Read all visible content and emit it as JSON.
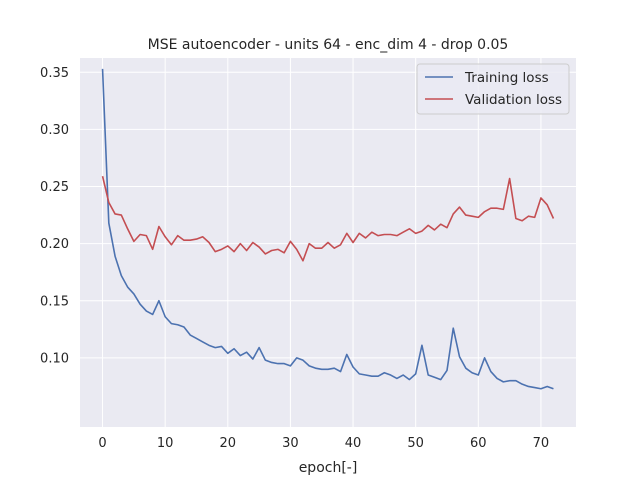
{
  "chart_data": {
    "type": "line",
    "title": "MSE autoencoder - units 64 - enc_dim 4 - drop 0.05",
    "xlabel": "epoch[-]",
    "ylabel": "",
    "xlim": [
      -3.6,
      75.6
    ],
    "ylim": [
      0.0395,
      0.3625
    ],
    "xticks": [
      0,
      10,
      20,
      30,
      40,
      50,
      60,
      70
    ],
    "xtick_labels": [
      "0",
      "10",
      "20",
      "30",
      "40",
      "50",
      "60",
      "70"
    ],
    "yticks": [
      0.1,
      0.15,
      0.2,
      0.25,
      0.3,
      0.35
    ],
    "ytick_labels": [
      "0.10",
      "0.15",
      "0.20",
      "0.25",
      "0.30",
      "0.35"
    ],
    "grid": true,
    "background": "#EAEAF2",
    "legend_position": "top-right",
    "x": [
      0,
      1,
      2,
      3,
      4,
      5,
      6,
      7,
      8,
      9,
      10,
      11,
      12,
      13,
      14,
      15,
      16,
      17,
      18,
      19,
      20,
      21,
      22,
      23,
      24,
      25,
      26,
      27,
      28,
      29,
      30,
      31,
      32,
      33,
      34,
      35,
      36,
      37,
      38,
      39,
      40,
      41,
      42,
      43,
      44,
      45,
      46,
      47,
      48,
      49,
      50,
      51,
      52,
      53,
      54,
      55,
      56,
      57,
      58,
      59,
      60,
      61,
      62,
      63,
      64,
      65,
      66,
      67,
      68,
      69,
      70,
      71,
      72
    ],
    "series": [
      {
        "name": "Training loss",
        "color": "#4C72B0",
        "values": [
          0.353,
          0.218,
          0.189,
          0.172,
          0.162,
          0.156,
          0.147,
          0.141,
          0.138,
          0.15,
          0.136,
          0.13,
          0.129,
          0.127,
          0.12,
          0.117,
          0.114,
          0.111,
          0.109,
          0.11,
          0.104,
          0.108,
          0.102,
          0.105,
          0.099,
          0.109,
          0.098,
          0.096,
          0.095,
          0.095,
          0.093,
          0.1,
          0.098,
          0.093,
          0.091,
          0.09,
          0.09,
          0.091,
          0.088,
          0.103,
          0.092,
          0.086,
          0.085,
          0.084,
          0.084,
          0.087,
          0.085,
          0.082,
          0.085,
          0.081,
          0.086,
          0.111,
          0.085,
          0.083,
          0.081,
          0.089,
          0.126,
          0.101,
          0.091,
          0.087,
          0.085,
          0.1,
          0.088,
          0.082,
          0.079,
          0.08,
          0.08,
          0.077,
          0.075,
          0.074,
          0.073,
          0.075,
          0.073
        ]
      },
      {
        "name": "Validation loss",
        "color": "#C44E52",
        "values": [
          0.259,
          0.236,
          0.226,
          0.225,
          0.213,
          0.202,
          0.208,
          0.207,
          0.195,
          0.215,
          0.206,
          0.199,
          0.207,
          0.203,
          0.203,
          0.204,
          0.206,
          0.201,
          0.193,
          0.195,
          0.198,
          0.193,
          0.2,
          0.194,
          0.201,
          0.197,
          0.191,
          0.194,
          0.195,
          0.192,
          0.202,
          0.195,
          0.185,
          0.2,
          0.196,
          0.196,
          0.201,
          0.196,
          0.199,
          0.209,
          0.201,
          0.209,
          0.205,
          0.21,
          0.207,
          0.208,
          0.208,
          0.207,
          0.21,
          0.213,
          0.209,
          0.211,
          0.216,
          0.212,
          0.217,
          0.214,
          0.226,
          0.232,
          0.225,
          0.224,
          0.223,
          0.228,
          0.231,
          0.231,
          0.23,
          0.257,
          0.222,
          0.22,
          0.224,
          0.223,
          0.24,
          0.234,
          0.222
        ]
      }
    ]
  }
}
